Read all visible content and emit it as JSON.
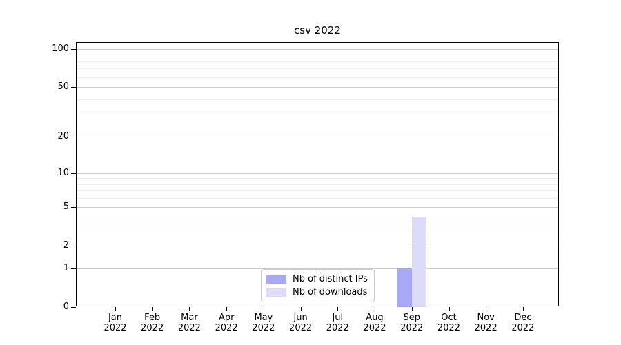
{
  "chart_data": {
    "type": "bar",
    "title": "csv 2022",
    "categories": [
      "Jan",
      "Feb",
      "Mar",
      "Apr",
      "May",
      "Jun",
      "Jul",
      "Aug",
      "Sep",
      "Oct",
      "Nov",
      "Dec"
    ],
    "category_year": "2022",
    "series": [
      {
        "name": "Nb of distinct IPs",
        "color": "#a8a8f6",
        "values": [
          0,
          0,
          0,
          0,
          0,
          0,
          0,
          0,
          1,
          0,
          0,
          0
        ]
      },
      {
        "name": "Nb of downloads",
        "color": "#dcdcf9",
        "values": [
          0,
          0,
          0,
          0,
          0,
          0,
          0,
          0,
          4,
          0,
          0,
          0
        ]
      }
    ],
    "yscale": "log1p",
    "yticks": [
      0,
      1,
      2,
      5,
      10,
      20,
      50,
      100
    ],
    "ytick_labels": [
      "0",
      "1",
      "2",
      "5",
      "10",
      "20",
      "50",
      "100"
    ],
    "minor_yticks": [
      3,
      4,
      6,
      7,
      8,
      9,
      30,
      40,
      60,
      70,
      80,
      90
    ],
    "ylim": [
      0,
      111
    ],
    "grid": "horizontal, major and minor",
    "legend_position": "lower center",
    "colors": {
      "major_grid": "#cccccc",
      "minor_grid": "#ececec",
      "axis": "#000000",
      "background": "#ffffff"
    }
  }
}
